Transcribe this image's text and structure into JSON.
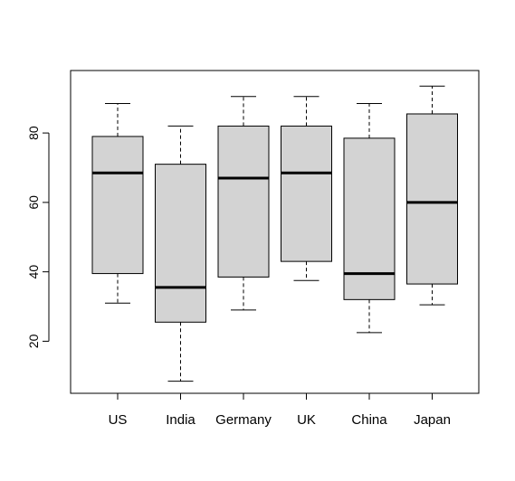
{
  "chart_data": {
    "type": "boxplot",
    "title": "",
    "xlabel": "",
    "ylabel": "",
    "ylim": [
      5,
      98
    ],
    "yticks": [
      20,
      40,
      60,
      80
    ],
    "categories": [
      "US",
      "India",
      "Germany",
      "UK",
      "China",
      "Japan"
    ],
    "series": [
      {
        "min": 31,
        "q1": 39.5,
        "median": 68.5,
        "q3": 79,
        "max": 88.5
      },
      {
        "min": 8.5,
        "q1": 25.5,
        "median": 35.5,
        "q3": 71,
        "max": 82
      },
      {
        "min": 29,
        "q1": 38.5,
        "median": 67,
        "q3": 82,
        "max": 90.5
      },
      {
        "min": 37.5,
        "q1": 43,
        "median": 68.5,
        "q3": 82,
        "max": 90.5
      },
      {
        "min": 22.5,
        "q1": 32,
        "median": 39.5,
        "q3": 78.5,
        "max": 88.5
      },
      {
        "min": 30.5,
        "q1": 36.5,
        "median": 60,
        "q3": 85.5,
        "max": 93.5
      }
    ],
    "box_fill": "#d3d3d3",
    "stroke": "#000000"
  }
}
